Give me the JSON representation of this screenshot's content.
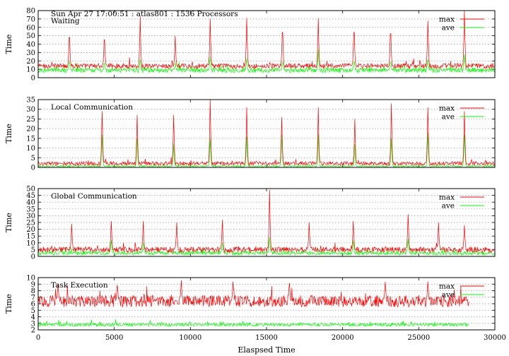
{
  "header": {
    "title": "Sun Apr 27 17:00:51 : atlas801 : 1536 Processors"
  },
  "chart_data": [
    {
      "type": "line",
      "title": "Waiting",
      "xlabel": "",
      "ylabel": "Time",
      "xlim": [
        0,
        30000
      ],
      "ylim": [
        0,
        80
      ],
      "yticks": [
        0,
        10,
        20,
        30,
        40,
        50,
        60,
        70,
        80
      ],
      "grid": true,
      "legend": "top-right",
      "series": [
        {
          "name": "max",
          "color": "#ff0000",
          "baseline": 14,
          "noise": 3,
          "spikes": [
            [
              2050,
              60
            ],
            [
              4350,
              56
            ],
            [
              6700,
              73
            ],
            [
              9000,
              50
            ],
            [
              11300,
              70
            ],
            [
              13700,
              71
            ],
            [
              16050,
              68
            ],
            [
              18400,
              71
            ],
            [
              20750,
              68
            ],
            [
              23150,
              66
            ],
            [
              25600,
              68
            ],
            [
              28000,
              80
            ]
          ]
        },
        {
          "name": "ave",
          "color": "#00ff00",
          "baseline": 9,
          "noise": 3,
          "spikes": [
            [
              2050,
              22
            ],
            [
              4350,
              20
            ],
            [
              6700,
              22
            ],
            [
              9000,
              18
            ],
            [
              11300,
              25
            ],
            [
              13700,
              23
            ],
            [
              16050,
              22
            ],
            [
              18400,
              34
            ],
            [
              20750,
              22
            ],
            [
              23150,
              22
            ],
            [
              25600,
              22
            ],
            [
              28000,
              28
            ]
          ]
        }
      ]
    },
    {
      "type": "line",
      "title": "Local Communication",
      "xlabel": "",
      "ylabel": "Time",
      "xlim": [
        0,
        30000
      ],
      "ylim": [
        0,
        35
      ],
      "yticks": [
        0,
        5,
        10,
        15,
        20,
        25,
        30,
        35
      ],
      "grid": true,
      "legend": "top-right",
      "series": [
        {
          "name": "max",
          "color": "#ff0000",
          "baseline": 2,
          "noise": 1,
          "spikes": [
            [
              4200,
              29
            ],
            [
              6500,
              27
            ],
            [
              8900,
              27
            ],
            [
              11300,
              35
            ],
            [
              13700,
              31
            ],
            [
              16000,
              26
            ],
            [
              18400,
              31
            ],
            [
              20800,
              25
            ],
            [
              23200,
              33
            ],
            [
              25600,
              31
            ],
            [
              28000,
              29
            ]
          ]
        },
        {
          "name": "ave",
          "color": "#00ff00",
          "baseline": 0.6,
          "noise": 0.4,
          "spikes": [
            [
              4200,
              17
            ],
            [
              6500,
              15
            ],
            [
              8900,
              12
            ],
            [
              11300,
              15
            ],
            [
              13700,
              16
            ],
            [
              16000,
              17
            ],
            [
              18400,
              17
            ],
            [
              20800,
              12
            ],
            [
              23200,
              15
            ],
            [
              25600,
              18
            ],
            [
              28000,
              17
            ]
          ]
        }
      ]
    },
    {
      "type": "line",
      "title": "Global Communication",
      "xlabel": "",
      "ylabel": "Time",
      "xlim": [
        0,
        30000
      ],
      "ylim": [
        0,
        50
      ],
      "yticks": [
        0,
        5,
        10,
        15,
        20,
        25,
        30,
        35,
        40,
        45,
        50
      ],
      "grid": true,
      "legend": "top-right",
      "series": [
        {
          "name": "max",
          "color": "#ff0000",
          "baseline": 5,
          "noise": 2,
          "spikes": [
            [
              2200,
              24
            ],
            [
              4800,
              26
            ],
            [
              6900,
              26
            ],
            [
              9100,
              25
            ],
            [
              12100,
              27
            ],
            [
              15200,
              49
            ],
            [
              17800,
              25
            ],
            [
              20700,
              26
            ],
            [
              24300,
              31
            ],
            [
              26300,
              25
            ],
            [
              28000,
              23
            ]
          ]
        },
        {
          "name": "ave",
          "color": "#00ff00",
          "baseline": 2.5,
          "noise": 1.5,
          "spikes": [
            [
              4800,
              12
            ],
            [
              6900,
              10
            ],
            [
              12100,
              10
            ],
            [
              15200,
              14
            ],
            [
              20700,
              12
            ],
            [
              24300,
              13
            ]
          ]
        }
      ]
    },
    {
      "type": "line",
      "title": "Task Execution",
      "xlabel": "Elaspsed Time",
      "ylabel": "Time",
      "xlim": [
        0,
        30000
      ],
      "ylim": [
        2,
        10
      ],
      "yticks": [
        2,
        3,
        4,
        5,
        6,
        7,
        8,
        9,
        10
      ],
      "xticks": [
        0,
        5000,
        10000,
        15000,
        20000,
        25000,
        30000
      ],
      "grid": true,
      "legend": "top-right",
      "series": [
        {
          "name": "max",
          "color": "#ff0000",
          "baseline": 6.4,
          "noise": 0.9,
          "spikes": [
            [
              1300,
              9.5
            ],
            [
              5200,
              9.4
            ],
            [
              9400,
              9.7
            ],
            [
              12800,
              9.5
            ],
            [
              16500,
              9.6
            ],
            [
              22800,
              9.5
            ],
            [
              25600,
              9.6
            ]
          ]
        },
        {
          "name": "ave",
          "color": "#00ff00",
          "baseline": 2.8,
          "noise": 0.25,
          "spikes": []
        }
      ]
    }
  ]
}
